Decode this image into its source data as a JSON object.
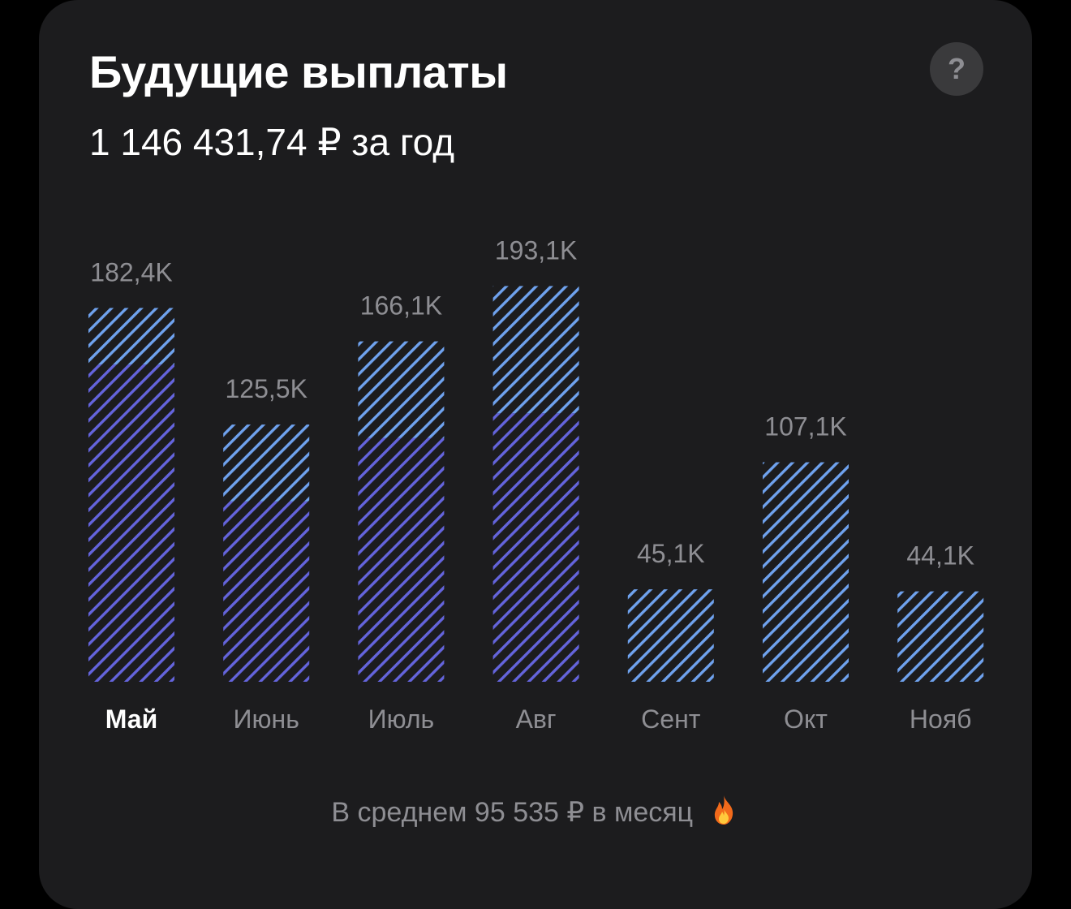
{
  "card": {
    "title": "Будущие выплаты",
    "subtitle": "1 146 431,74 ₽ за год",
    "help_label": "?",
    "footer_text": "В среднем 95 535 ₽ в месяц",
    "footer_icon": "fire-icon"
  },
  "colors": {
    "background": "#1c1c1e",
    "stripe_light": "#6fa2ee",
    "stripe_dark": "#6464dc",
    "label": "#8e8e93",
    "label_active": "#ffffff"
  },
  "chart_data": {
    "type": "bar",
    "title": "",
    "xlabel": "",
    "ylabel": "",
    "ylim": [
      0,
      205
    ],
    "grid": false,
    "categories": [
      "Май",
      "Июнь",
      "Июль",
      "Авг",
      "Сент",
      "Окт",
      "Нояб"
    ],
    "value_labels": [
      "182,4K",
      "125,5K",
      "166,1K",
      "193,1K",
      "45,1K",
      "107,1K",
      "44,1K"
    ],
    "values": [
      182.4,
      125.5,
      166.1,
      193.1,
      45.1,
      107.1,
      44.1
    ],
    "series": [
      {
        "values": [
          154.8,
          88.0,
          119.0,
          131.0,
          0,
          0,
          0
        ]
      },
      {
        "values": [
          27.6,
          37.5,
          47.1,
          62.1,
          45.1,
          107.1,
          44.1
        ]
      }
    ],
    "active_category": "Май"
  }
}
